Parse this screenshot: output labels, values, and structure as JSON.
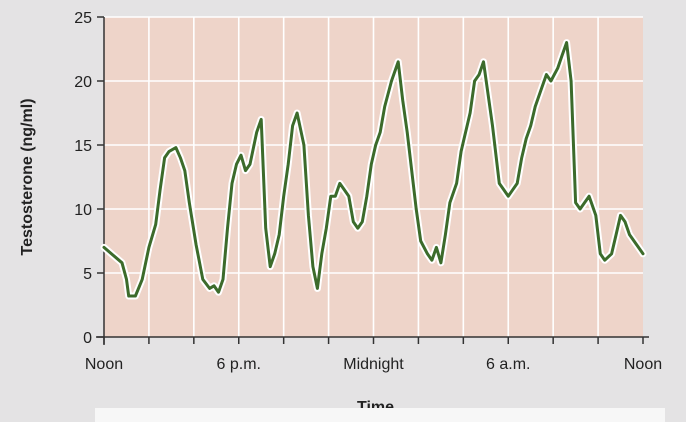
{
  "chart_data": {
    "type": "line",
    "title": "",
    "xlabel": "Time",
    "ylabel": "Testosterone (ng/ml)",
    "x_unit": "hours after noon",
    "xlim": [
      0,
      24
    ],
    "ylim": [
      0,
      25
    ],
    "x_ticks": [
      {
        "value": 0,
        "label": "Noon"
      },
      {
        "value": 6,
        "label": "6 p.m."
      },
      {
        "value": 12,
        "label": "Midnight"
      },
      {
        "value": 18,
        "label": "6 a.m."
      },
      {
        "value": 24,
        "label": "Noon"
      }
    ],
    "y_ticks": [
      0,
      5,
      10,
      15,
      20,
      25
    ],
    "grid": true,
    "colors": {
      "plot_background": "#eed4c9",
      "grid": "#ffffff",
      "line": "#3c6b2b",
      "line_halo": "#ffffff",
      "axis": "#333333",
      "text": "#222222"
    },
    "series": [
      {
        "x": [
          0.0,
          0.4,
          0.8,
          1.0,
          1.1,
          1.4,
          1.7,
          2.0,
          2.3,
          2.5,
          2.7,
          2.9,
          3.2,
          3.4,
          3.6,
          3.8,
          4.1,
          4.4,
          4.7,
          4.9,
          5.1,
          5.3,
          5.5,
          5.7,
          5.9,
          6.1,
          6.3,
          6.5,
          6.8,
          7.0,
          7.2,
          7.4,
          7.6,
          7.8,
          8.0,
          8.2,
          8.4,
          8.6,
          8.9,
          9.1,
          9.3,
          9.5,
          9.7,
          9.9,
          10.1,
          10.3,
          10.5,
          10.7,
          10.9,
          11.1,
          11.3,
          11.5,
          11.7,
          11.9,
          12.1,
          12.3,
          12.5,
          12.8,
          13.1,
          13.3,
          13.5,
          13.7,
          13.9,
          14.1,
          14.4,
          14.6,
          14.8,
          15.0,
          15.2,
          15.4,
          15.7,
          15.9,
          16.1,
          16.3,
          16.5,
          16.7,
          16.9,
          17.1,
          17.3,
          17.6,
          17.8,
          18.0,
          18.2,
          18.4,
          18.6,
          18.8,
          19.0,
          19.2,
          19.5,
          19.7,
          19.9,
          20.2,
          20.4,
          20.6,
          20.8,
          21.0,
          21.2,
          21.4,
          21.6,
          21.9,
          22.1,
          22.3,
          22.6,
          22.8,
          23.0,
          23.2,
          23.4,
          23.6,
          23.8,
          24.0
        ],
        "values": [
          7.0,
          6.4,
          5.8,
          4.5,
          3.2,
          3.2,
          4.5,
          7.0,
          8.8,
          11.5,
          14.0,
          14.5,
          14.8,
          14.0,
          13.0,
          10.5,
          7.2,
          4.5,
          3.8,
          4.0,
          3.5,
          4.5,
          8.5,
          12.0,
          13.5,
          14.2,
          13.0,
          13.5,
          16.0,
          17.0,
          8.5,
          5.5,
          6.5,
          8.0,
          11.0,
          13.5,
          16.5,
          17.5,
          15.0,
          9.5,
          5.5,
          3.8,
          6.5,
          8.5,
          11.0,
          11.0,
          12.0,
          11.5,
          11.0,
          9.0,
          8.5,
          9.0,
          11.0,
          13.5,
          15.0,
          16.0,
          18.0,
          20.0,
          21.5,
          18.5,
          16.0,
          13.0,
          10.0,
          7.5,
          6.5,
          6.0,
          7.0,
          5.8,
          8.0,
          10.5,
          12.0,
          14.5,
          16.0,
          17.5,
          20.0,
          20.5,
          21.5,
          19.0,
          16.5,
          12.0,
          11.5,
          11.0,
          11.5,
          12.0,
          14.0,
          15.5,
          16.5,
          18.0,
          19.5,
          20.5,
          20.0,
          21.0,
          22.0,
          23.0,
          20.0,
          10.5,
          10.0,
          10.5,
          11.0,
          9.5,
          6.5,
          6.0,
          6.5,
          8.0,
          9.5,
          9.0,
          8.0,
          7.5,
          7.0,
          6.5
        ]
      }
    ]
  }
}
